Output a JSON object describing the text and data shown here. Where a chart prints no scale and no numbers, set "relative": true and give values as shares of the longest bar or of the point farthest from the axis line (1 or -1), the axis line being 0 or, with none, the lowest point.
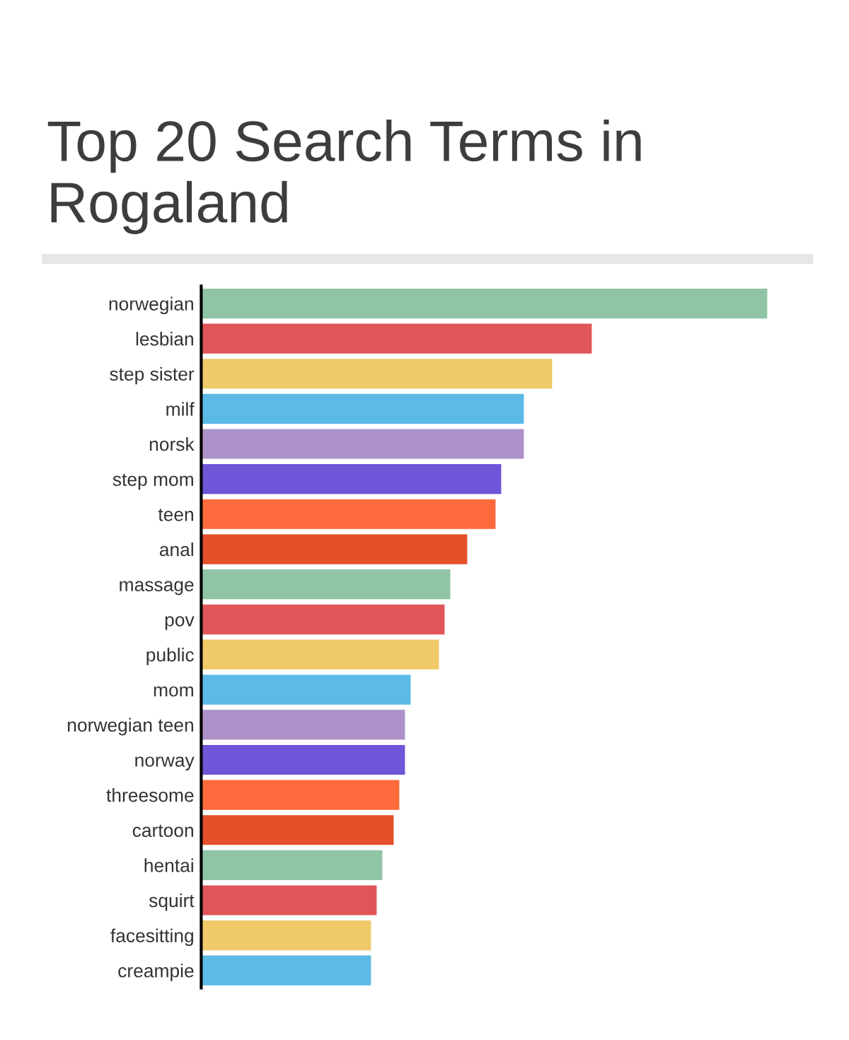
{
  "chart_data": {
    "type": "bar",
    "orientation": "horizontal",
    "relative": true,
    "title": "Top 20 Search Terms in Rogaland",
    "categories": [
      "norwegian",
      "lesbian",
      "step sister",
      "milf",
      "norsk",
      "step mom",
      "teen",
      "anal",
      "massage",
      "pov",
      "public",
      "mom",
      "norwegian teen",
      "norway",
      "threesome",
      "cartoon",
      "hentai",
      "squirt",
      "facesitting",
      "creampie"
    ],
    "values": [
      1,
      0.69,
      0.62,
      0.57,
      0.57,
      0.53,
      0.52,
      0.47,
      0.44,
      0.43,
      0.42,
      0.37,
      0.36,
      0.36,
      0.35,
      0.34,
      0.32,
      0.31,
      0.3,
      0.3
    ],
    "colors": [
      "#8fc4a5",
      "#e05558",
      "#f0ca69",
      "#5db9e6",
      "#ad92c9",
      "#6f55d8",
      "#ff6a3d",
      "#e5502a",
      "#8fc4a5",
      "#e05558",
      "#f0ca69",
      "#5db9e6",
      "#ad92c9",
      "#6f55d8",
      "#ff6a3d",
      "#e5502a",
      "#8fc4a5",
      "#e05558",
      "#f0ca69",
      "#5db9e6"
    ],
    "grid": false,
    "legend": false
  }
}
